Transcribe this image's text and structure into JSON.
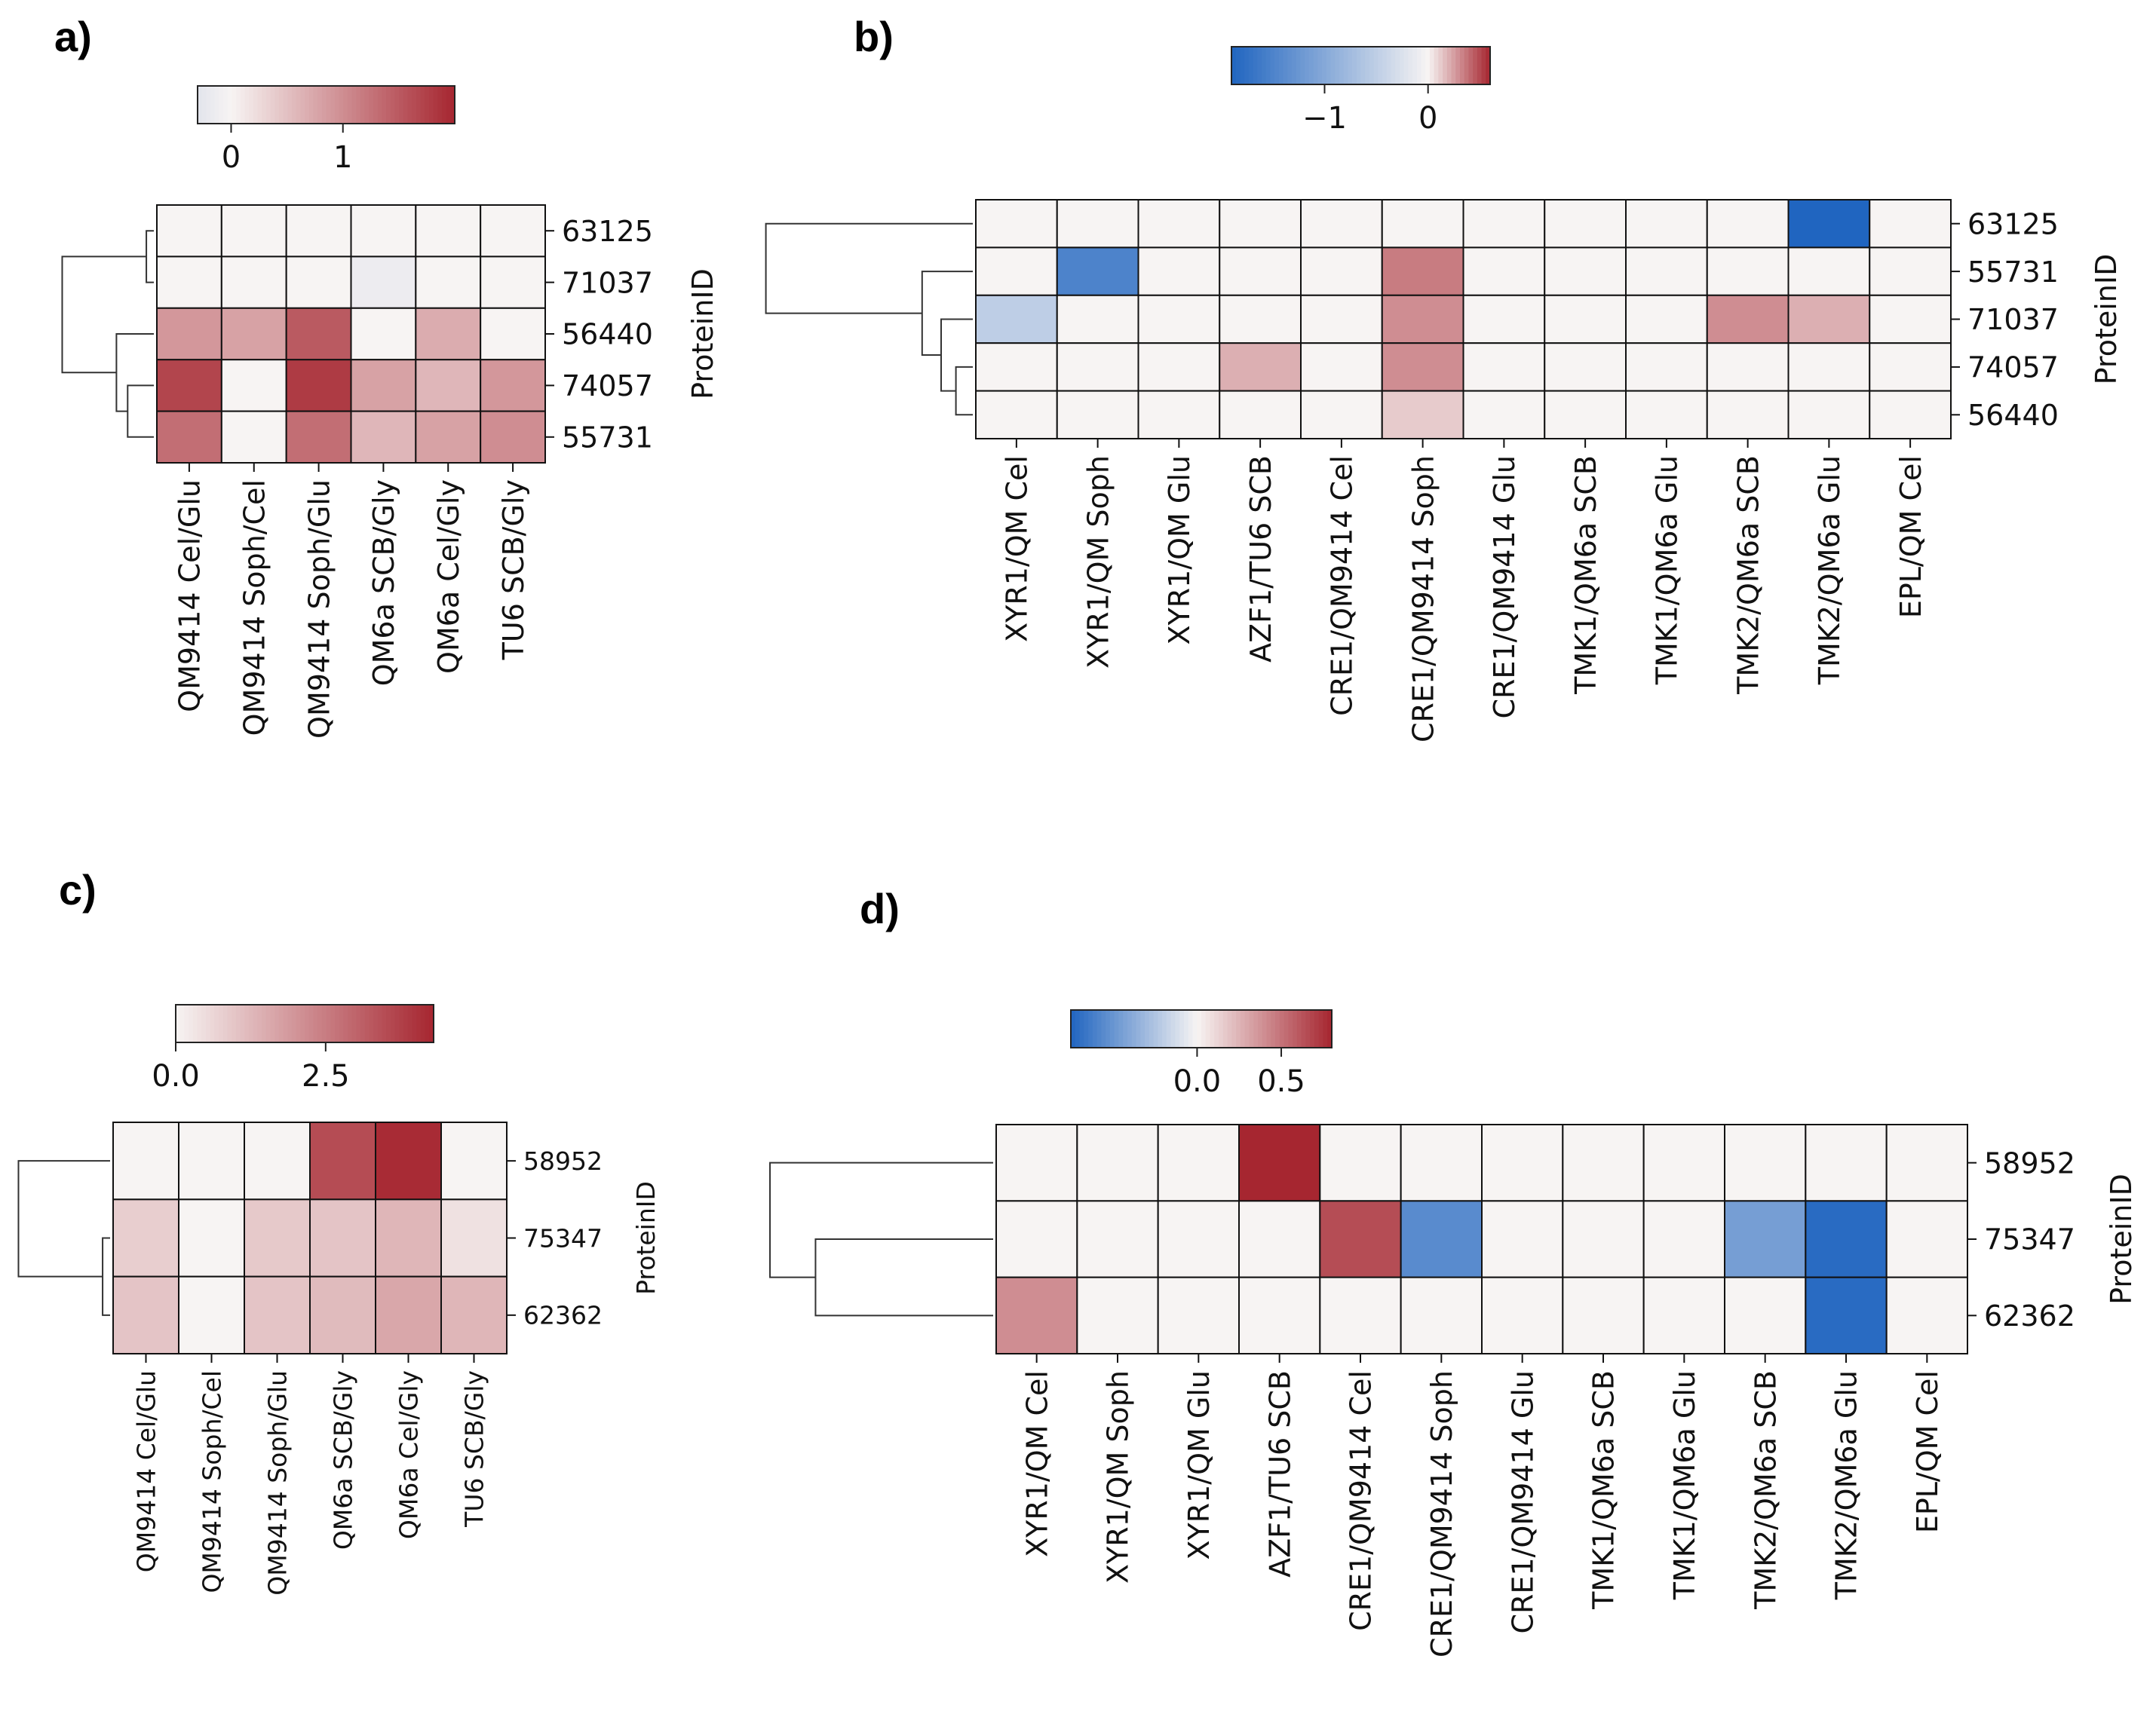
{
  "chart_data": [
    {
      "panel": "a)",
      "type": "heatmap",
      "ylabel": "ProteinID",
      "columns": [
        "QM9414 Cel/Glu",
        "QM9414 Soph/Cel",
        "QM9414 Soph/Glu",
        "QM6a SCB/Gly",
        "QM6a Cel/Gly",
        "TU6 SCB/Gly"
      ],
      "rows": [
        "63125",
        "71037",
        "56440",
        "74057",
        "55731"
      ],
      "values": [
        [
          0,
          0,
          0,
          0,
          0,
          0
        ],
        [
          0,
          0,
          0,
          -0.15,
          0,
          0
        ],
        [
          0.9,
          0.8,
          1.5,
          0,
          0.7,
          0
        ],
        [
          1.7,
          0,
          1.8,
          0.8,
          0.6,
          0.9
        ],
        [
          1.3,
          0,
          1.3,
          0.6,
          0.8,
          1.0
        ]
      ],
      "colorbar": {
        "cmap": "white-red",
        "range": [
          -0.3,
          2.0
        ],
        "ticks": [
          "0",
          "1"
        ]
      }
    },
    {
      "panel": "b)",
      "type": "heatmap",
      "ylabel": "ProteinID",
      "columns": [
        "XYR1/QM Cel",
        "XYR1/QM Soph",
        "XYR1/QM Glu",
        "AZF1/TU6 SCB",
        "CRE1/QM9414 Cel",
        "CRE1/QM9414 Soph",
        "CRE1/QM9414 Glu",
        "TMK1/QM6a SCB",
        "TMK1/QM6a Glu",
        "TMK2/QM6a SCB",
        "TMK2/QM6a Glu",
        "EPL/QM Cel"
      ],
      "rows": [
        "63125",
        "55731",
        "71037",
        "74057",
        "56440"
      ],
      "values": [
        [
          0,
          0,
          0,
          0,
          0,
          0,
          0,
          0,
          0,
          0,
          -1.9,
          0
        ],
        [
          0,
          -1.5,
          0,
          0,
          0,
          0.35,
          0,
          0,
          0,
          0,
          0,
          0
        ],
        [
          -0.5,
          0,
          0,
          0,
          0,
          0.3,
          0,
          0,
          0,
          0.3,
          0.2,
          0
        ],
        [
          0,
          0,
          0,
          0.2,
          0,
          0.3,
          0,
          0,
          0,
          0,
          0,
          0
        ],
        [
          0,
          0,
          0,
          0,
          0,
          0.12,
          0,
          0,
          0,
          0,
          0,
          0
        ]
      ],
      "colorbar": {
        "cmap": "blue-white-red",
        "range": [
          -1.9,
          0.6
        ],
        "ticks": [
          "−1",
          "0"
        ]
      }
    },
    {
      "panel": "c)",
      "type": "heatmap",
      "ylabel": "ProteinID",
      "columns": [
        "QM9414 Cel/Glu",
        "QM9414 Soph/Cel",
        "QM9414 Soph/Glu",
        "QM6a SCB/Gly",
        "QM6a Cel/Gly",
        "TU6 SCB/Gly"
      ],
      "rows": [
        "58952",
        "75347",
        "62362"
      ],
      "values": [
        [
          0,
          0,
          0,
          3.5,
          4.2,
          0
        ],
        [
          0.8,
          0,
          0.9,
          1.0,
          1.3,
          0.4
        ],
        [
          1.0,
          0,
          1.0,
          1.2,
          1.6,
          1.3
        ]
      ],
      "colorbar": {
        "cmap": "white-red",
        "range": [
          0,
          4.3
        ],
        "ticks": [
          "0.0",
          "2.5"
        ]
      }
    },
    {
      "panel": "d)",
      "type": "heatmap",
      "ylabel": "ProteinID",
      "columns": [
        "XYR1/QM Cel",
        "XYR1/QM Soph",
        "XYR1/QM Glu",
        "AZF1/TU6 SCB",
        "CRE1/QM9414 Cel",
        "CRE1/QM9414 Soph",
        "CRE1/QM9414 Glu",
        "TMK1/QM6a SCB",
        "TMK1/QM6a Glu",
        "TMK2/QM6a SCB",
        "TMK2/QM6a Glu",
        "EPL/QM Cel"
      ],
      "rows": [
        "58952",
        "75347",
        "62362"
      ],
      "values": [
        [
          0,
          0,
          0,
          0.8,
          0,
          0,
          0,
          0,
          0,
          0,
          0,
          0
        ],
        [
          0,
          0,
          0,
          0,
          0.65,
          -0.55,
          0,
          0,
          0,
          -0.45,
          -0.72,
          0
        ],
        [
          0.4,
          0,
          0,
          0,
          0,
          0,
          0,
          0,
          0,
          0,
          -0.72,
          0
        ]
      ],
      "colorbar": {
        "cmap": "blue-white-red",
        "range": [
          -0.75,
          0.8
        ],
        "ticks": [
          "0.0",
          "0.5"
        ]
      }
    }
  ]
}
